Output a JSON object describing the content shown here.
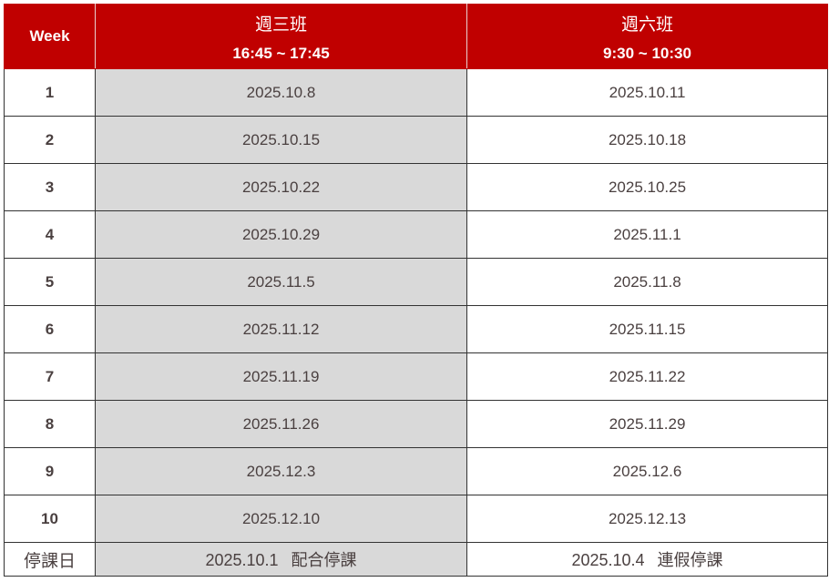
{
  "header": {
    "week": "Week",
    "wed": {
      "title": "週三班",
      "time": "16:45 ~ 17:45"
    },
    "sat": {
      "title": "週六班",
      "time": "9:30 ~ 10:30"
    }
  },
  "colors": {
    "header_bg": "#c00000",
    "wed_col_bg": "#d9d9d9"
  },
  "rows": [
    {
      "week": "1",
      "wed": "2025.10.8",
      "sat": "2025.10.11"
    },
    {
      "week": "2",
      "wed": "2025.10.15",
      "sat": "2025.10.18"
    },
    {
      "week": "3",
      "wed": "2025.10.22",
      "sat": "2025.10.25"
    },
    {
      "week": "4",
      "wed": "2025.10.29",
      "sat": "2025.11.1"
    },
    {
      "week": "5",
      "wed": "2025.11.5",
      "sat": "2025.11.8"
    },
    {
      "week": "6",
      "wed": "2025.11.12",
      "sat": "2025.11.15"
    },
    {
      "week": "7",
      "wed": "2025.11.19",
      "sat": "2025.11.22"
    },
    {
      "week": "8",
      "wed": "2025.11.26",
      "sat": "2025.11.29"
    },
    {
      "week": "9",
      "wed": "2025.12.3",
      "sat": "2025.12.6"
    },
    {
      "week": "10",
      "wed": "2025.12.10",
      "sat": "2025.12.13"
    }
  ],
  "closure": {
    "label": "停課日",
    "wed_date": "2025.10.1",
    "wed_note": "配合停課",
    "sat_date": "2025.10.4",
    "sat_note": "連假停課"
  }
}
